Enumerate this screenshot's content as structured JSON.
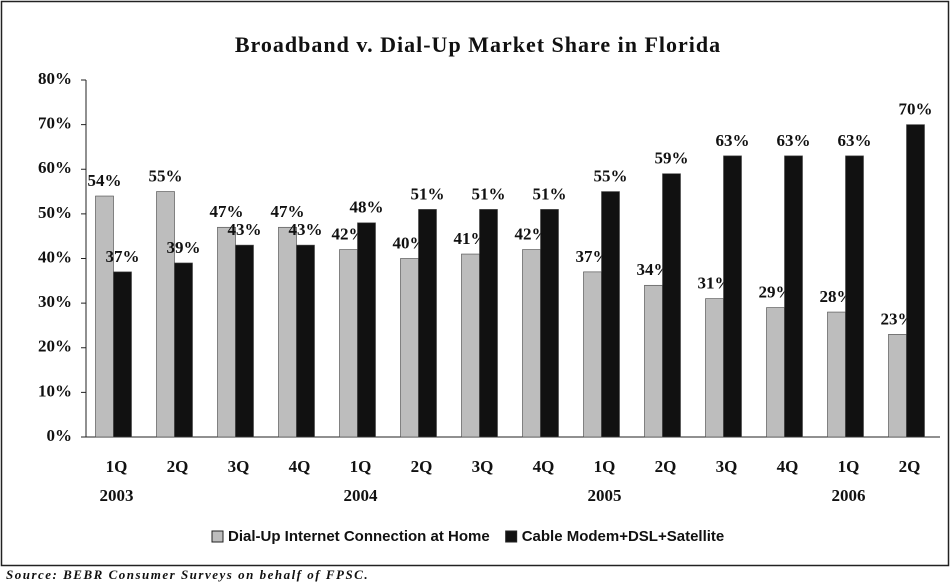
{
  "chart_data": {
    "type": "bar",
    "title": "Broadband v. Dial-Up Market Share in Florida",
    "categories": [
      "1Q",
      "2Q",
      "3Q",
      "4Q",
      "1Q",
      "2Q",
      "3Q",
      "4Q",
      "1Q",
      "2Q",
      "3Q",
      "4Q",
      "1Q",
      "2Q"
    ],
    "category_years": [
      "2003",
      null,
      null,
      null,
      "2004",
      null,
      null,
      null,
      "2005",
      null,
      null,
      null,
      "2006",
      null
    ],
    "series": [
      {
        "name": "Dial-Up Internet Connection at Home",
        "color": "#bdbdbd",
        "values": [
          54,
          55,
          47,
          47,
          42,
          40,
          41,
          42,
          37,
          34,
          31,
          29,
          28,
          23
        ],
        "value_labels": [
          "54%",
          "55%",
          "47%",
          "47%",
          "42%",
          "40%",
          "41%",
          "42%",
          "37%",
          "34%",
          "31%",
          "29%",
          "28%",
          "23%"
        ]
      },
      {
        "name": "Cable Modem+DSL+Satellite",
        "color": "#111111",
        "values": [
          37,
          39,
          43,
          43,
          48,
          51,
          51,
          51,
          55,
          59,
          63,
          63,
          63,
          70
        ],
        "value_labels": [
          "37%",
          "39%",
          "43%",
          "43%",
          "48%",
          "51%",
          "51%",
          "51%",
          "55%",
          "59%",
          "63%",
          "63%",
          "63%",
          "70%"
        ]
      }
    ],
    "ylim": [
      0,
      80
    ],
    "yticks": [
      {
        "value": 0,
        "label": "0%"
      },
      {
        "value": 10,
        "label": "10%"
      },
      {
        "value": 20,
        "label": "20%"
      },
      {
        "value": 30,
        "label": "30%"
      },
      {
        "value": 40,
        "label": "40%"
      },
      {
        "value": 50,
        "label": "50%"
      },
      {
        "value": 60,
        "label": "60%"
      },
      {
        "value": 70,
        "label": "70%"
      },
      {
        "value": 80,
        "label": "80%"
      }
    ],
    "grid": false,
    "legend": "bottom",
    "source": "Source: BEBR Consumer Surveys on behalf of FPSC."
  }
}
